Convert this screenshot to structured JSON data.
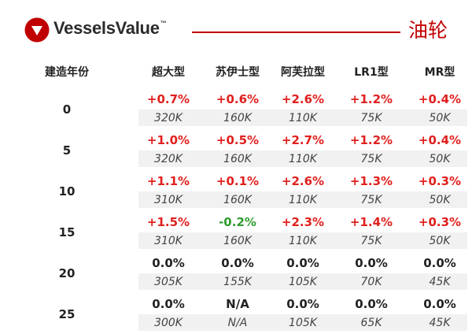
{
  "brand": {
    "name": "VesselsValue",
    "tm": "™",
    "accent": "#c00000"
  },
  "title": "油轮",
  "table": {
    "row_header": "建造年份",
    "columns": [
      "超大型",
      "苏伊士型",
      "阿芙拉型",
      "LR1型",
      "MR型"
    ],
    "rows": [
      {
        "age": "0",
        "changes": [
          "+0.7%",
          "+0.6%",
          "+2.6%",
          "+1.2%",
          "+0.4%"
        ],
        "values": [
          "320K",
          "160K",
          "110K",
          "75K",
          "50K"
        ]
      },
      {
        "age": "5",
        "changes": [
          "+1.0%",
          "+0.5%",
          "+2.7%",
          "+1.2%",
          "+0.4%"
        ],
        "values": [
          "320K",
          "160K",
          "110K",
          "75K",
          "50K"
        ]
      },
      {
        "age": "10",
        "changes": [
          "+1.1%",
          "+0.1%",
          "+2.6%",
          "+1.3%",
          "+0.3%"
        ],
        "values": [
          "310K",
          "160K",
          "110K",
          "75K",
          "50K"
        ]
      },
      {
        "age": "15",
        "changes": [
          "+1.5%",
          "-0.2%",
          "+2.3%",
          "+1.4%",
          "+0.3%"
        ],
        "values": [
          "310K",
          "160K",
          "110K",
          "75K",
          "50K"
        ]
      },
      {
        "age": "20",
        "changes": [
          "0.0%",
          "0.0%",
          "0.0%",
          "0.0%",
          "0.0%"
        ],
        "values": [
          "305K",
          "155K",
          "105K",
          "70K",
          "45K"
        ]
      },
      {
        "age": "25",
        "changes": [
          "0.0%",
          "N/A",
          "0.0%",
          "0.0%",
          "0.0%"
        ],
        "values": [
          "300K",
          "N/A",
          "105K",
          "65K",
          "45K"
        ]
      }
    ]
  },
  "colors": {
    "positive": "#e0201e",
    "negative": "#2e9c2e",
    "neutral": "#222222",
    "band": "#f1f1f1"
  }
}
